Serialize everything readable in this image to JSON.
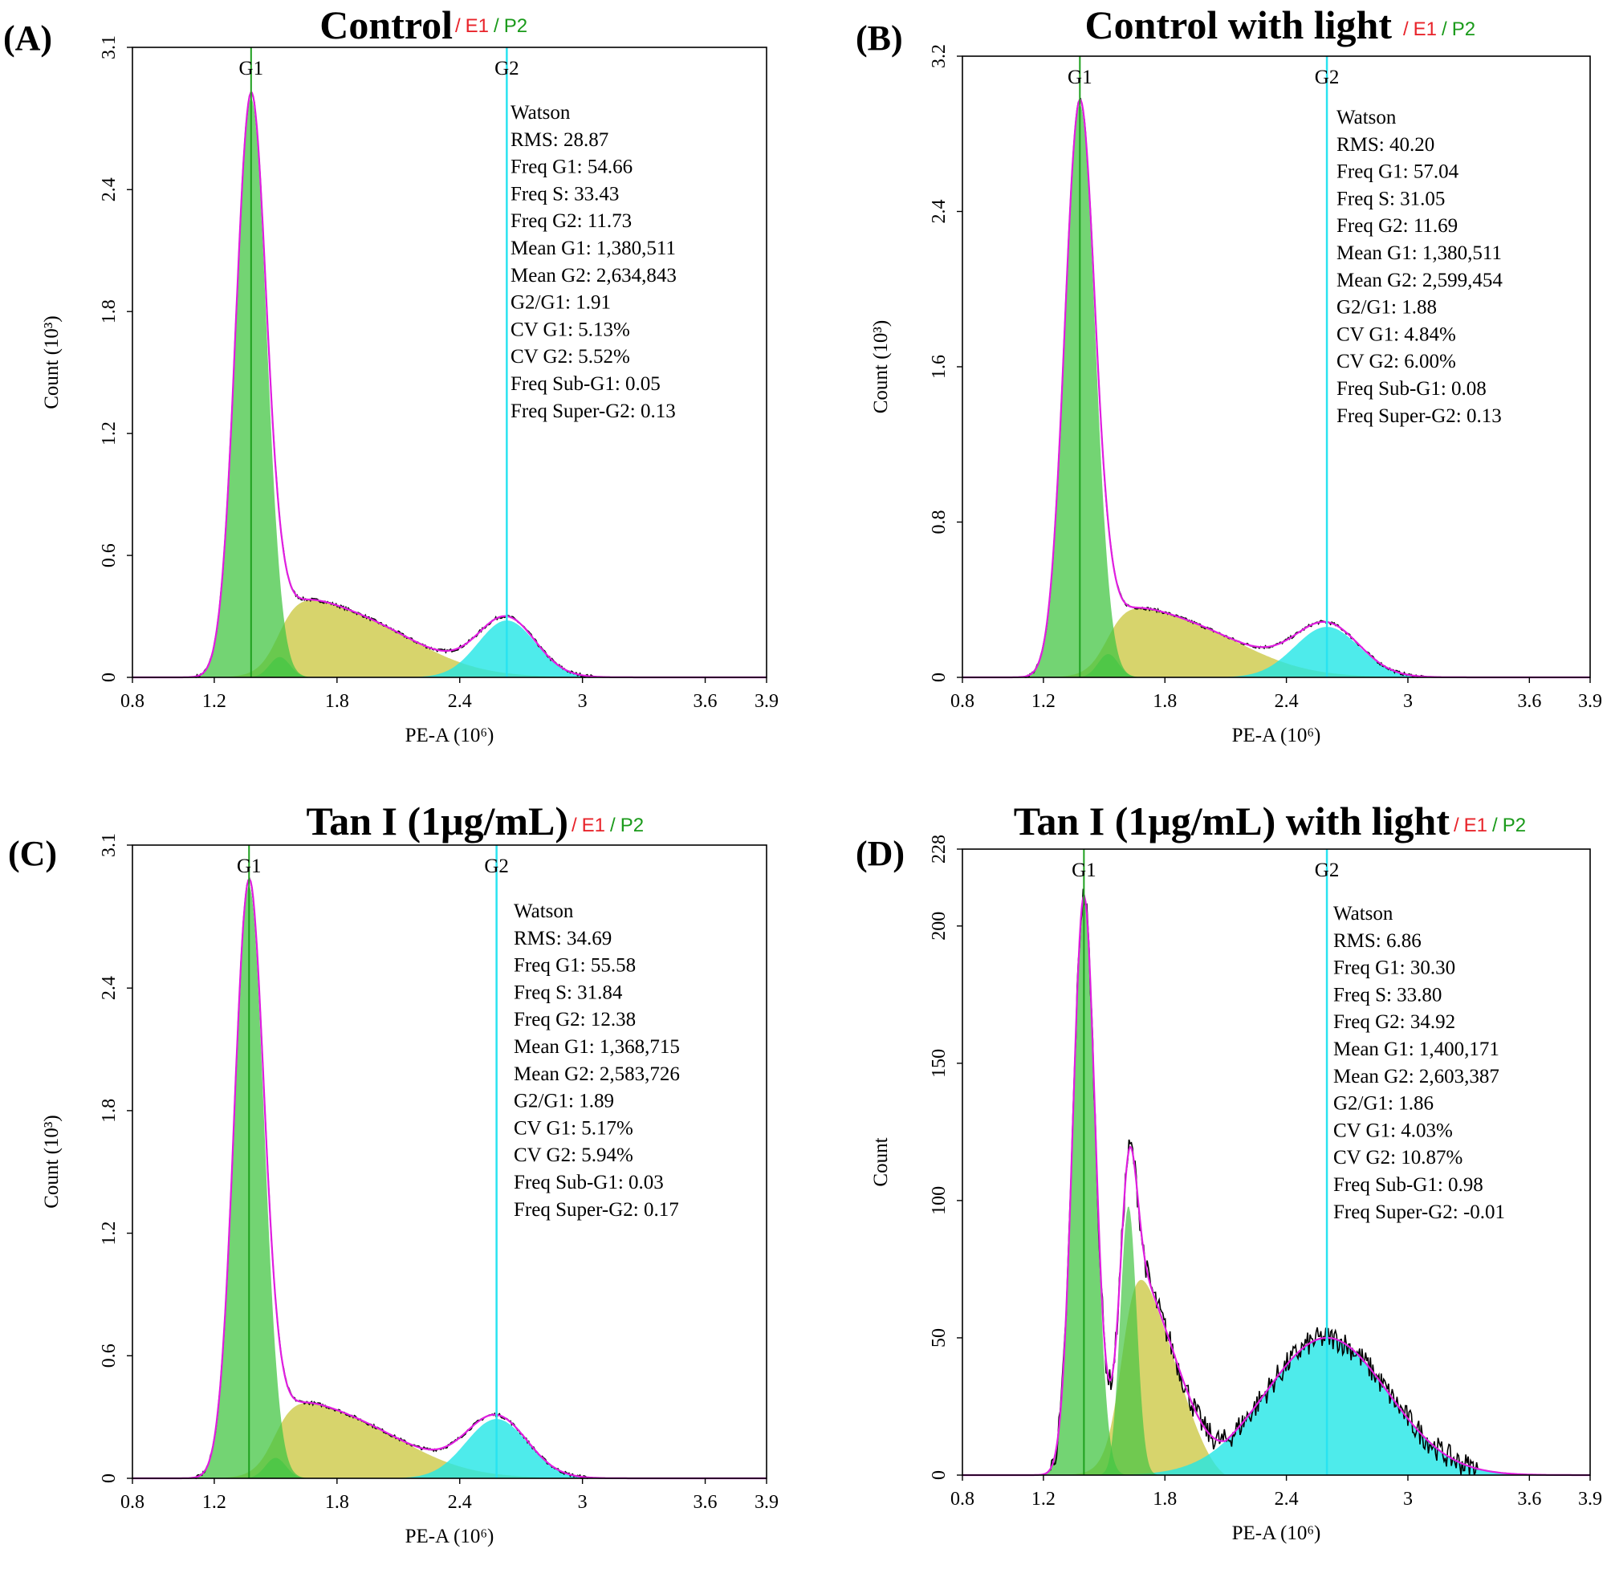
{
  "gate_labels": {
    "sep": "/",
    "e1": "E1",
    "p2": "P2"
  },
  "colors": {
    "g1_fill": "#44c544",
    "s_fill": "#c9c63b",
    "g2_fill": "#22e6e6",
    "g1_line": "#1fa01f",
    "g2_line": "#29e3f0",
    "fit": "#e01ee0",
    "data": "#000000",
    "e1": "#e8232a",
    "p2": "#1a9a1a"
  },
  "chart_data": [
    {
      "panel": "(A)",
      "type": "area",
      "title": "Control",
      "xlabel": "PE-A (10⁶)",
      "ylabel": "Count (10³)",
      "xlim": [
        0.8,
        3.9
      ],
      "ylim": [
        0,
        3.1
      ],
      "xticks": [
        "0.8",
        "1.2",
        "1.8",
        "2.4",
        "3",
        "3.6",
        "3.9"
      ],
      "yticks": [
        "0",
        "0.6",
        "1.2",
        "1.8",
        "2.4",
        "3.1"
      ],
      "g1_pos": 1.38,
      "g2_pos": 2.63,
      "g1_label": "G1",
      "g2_label": "G2",
      "fit": {
        "g1": [
          1.38,
          0.075,
          2.85
        ],
        "s": [
          0.45,
          0.28,
          0.19,
          1.52,
          0.05,
          2.25,
          0.18
        ],
        "g2": [
          2.63,
          0.14,
          0.28
        ],
        "ghost_g1": [
          1.52,
          0.05,
          0.1
        ],
        "data_scale": 1.0,
        "noise": 0.008
      },
      "stats": [
        "Watson",
        "RMS: 28.87",
        "Freq G1: 54.66",
        "Freq S: 33.43",
        "Freq G2: 11.73",
        "Mean G1: 1,380,511",
        "Mean G2: 2,634,843",
        "G2/G1: 1.91",
        "CV G1: 5.13%",
        "CV G2: 5.52%",
        "Freq Sub-G1: 0.05",
        "Freq Super-G2: 0.13"
      ]
    },
    {
      "panel": "(B)",
      "type": "area",
      "title": "Control with light",
      "xlabel": "PE-A (10⁶)",
      "ylabel": "Count (10³)",
      "xlim": [
        0.8,
        3.9
      ],
      "ylim": [
        0,
        3.2
      ],
      "xticks": [
        "0.8",
        "1.2",
        "1.8",
        "2.4",
        "3",
        "3.6",
        "3.9"
      ],
      "yticks": [
        "0",
        "0.8",
        "1.6",
        "2.4",
        "3.2"
      ],
      "g1_pos": 1.38,
      "g2_pos": 2.6,
      "g1_label": "G1",
      "g2_label": "G2",
      "fit": {
        "g1": [
          1.38,
          0.075,
          2.95
        ],
        "s": [
          0.42,
          0.27,
          0.19,
          1.52,
          0.05,
          2.25,
          0.18
        ],
        "g2": [
          2.6,
          0.16,
          0.26
        ],
        "ghost_g1": [
          1.52,
          0.05,
          0.12
        ],
        "data_scale": 1.0,
        "noise": 0.008
      },
      "stats": [
        "Watson",
        "RMS: 40.20",
        "Freq G1: 57.04",
        "Freq S: 31.05",
        "Freq G2: 11.69",
        "Mean G1: 1,380,511",
        "Mean G2: 2,599,454",
        "G2/G1: 1.88",
        "CV G1: 4.84%",
        "CV G2: 6.00%",
        "Freq Sub-G1: 0.08",
        "Freq Super-G2: 0.13"
      ]
    },
    {
      "panel": "(C)",
      "type": "area",
      "title": "Tan I (1μg/mL)",
      "xlabel": "PE-A (10⁶)",
      "ylabel": "Count (10³)",
      "xlim": [
        0.8,
        3.9
      ],
      "ylim": [
        0,
        3.1
      ],
      "xticks": [
        "0.8",
        "1.2",
        "1.8",
        "2.4",
        "3",
        "3.6",
        "3.9"
      ],
      "yticks": [
        "0",
        "0.6",
        "1.2",
        "1.8",
        "2.4",
        "3.1"
      ],
      "g1_pos": 1.37,
      "g2_pos": 2.58,
      "g1_label": "G1",
      "g2_label": "G2",
      "fit": {
        "g1": [
          1.37,
          0.073,
          2.9
        ],
        "s": [
          0.44,
          0.28,
          0.19,
          1.5,
          0.05,
          2.2,
          0.18
        ],
        "g2": [
          2.58,
          0.15,
          0.29
        ],
        "ghost_g1": [
          1.5,
          0.05,
          0.1
        ],
        "data_scale": 1.0,
        "noise": 0.008
      },
      "stats": [
        "Watson",
        "RMS: 34.69",
        "Freq G1: 55.58",
        "Freq S: 31.84",
        "Freq G2: 12.38",
        "Mean G1: 1,368,715",
        "Mean G2: 2,583,726",
        "G2/G1: 1.89",
        "CV G1: 5.17%",
        "CV G2: 5.94%",
        "Freq Sub-G1: 0.03",
        "Freq Super-G2: 0.17"
      ]
    },
    {
      "panel": "(D)",
      "type": "area",
      "title": "Tan I (1μg/mL) with light",
      "xlabel": "PE-A (10⁶)",
      "ylabel": "Count",
      "xlim": [
        0.8,
        3.9
      ],
      "ylim": [
        0,
        228
      ],
      "xticks": [
        "0.8",
        "1.2",
        "1.8",
        "2.4",
        "3",
        "3.6",
        "3.9"
      ],
      "yticks": [
        "0",
        "50",
        "100",
        "150",
        "200",
        "228"
      ],
      "g1_pos": 1.4,
      "g2_pos": 2.6,
      "g1_label": "G1",
      "g2_label": "G2",
      "fit": {
        "g1": [
          1.4,
          0.055,
          210
        ],
        "s": [
          100,
          20,
          12,
          1.6,
          0.04,
          2.0,
          0.1
        ],
        "g2": [
          2.6,
          0.3,
          50
        ],
        "ghost_g1": [
          1.62,
          0.04,
          98
        ],
        "data_scale": 1.0,
        "noise": 4.5
      },
      "stats": [
        "Watson",
        "RMS: 6.86",
        "Freq G1: 30.30",
        "Freq S: 33.80",
        "Freq G2: 34.92",
        "Mean G1: 1,400,171",
        "Mean G2: 2,603,387",
        "G2/G1: 1.86",
        "CV G1: 4.03%",
        "CV G2: 10.87%",
        "Freq Sub-G1: 0.98",
        "Freq Super-G2: -0.01"
      ]
    }
  ]
}
